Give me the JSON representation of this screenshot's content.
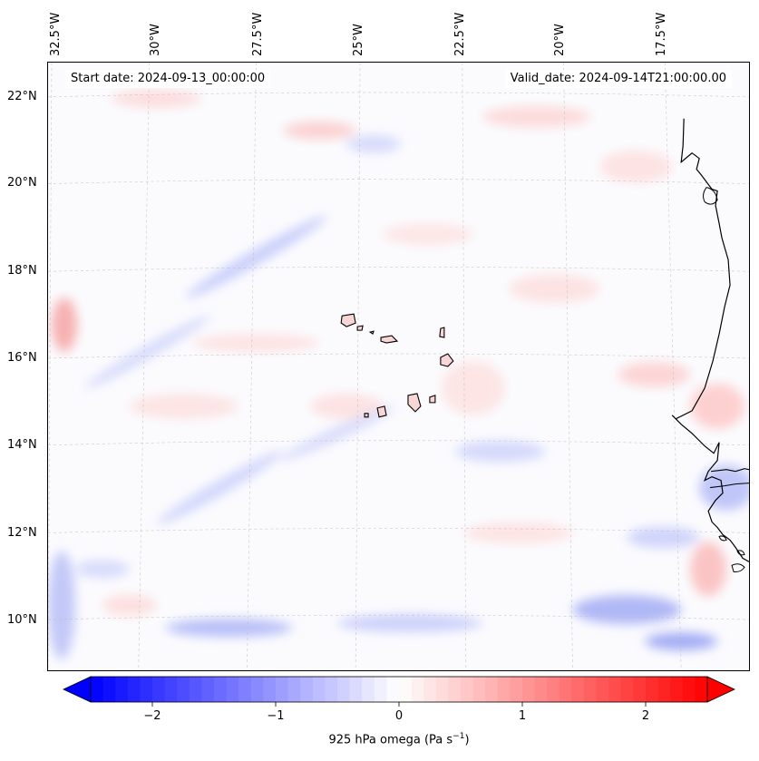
{
  "map": {
    "start_date_label": "Start date: 2024-09-13_00:00:00",
    "valid_date_label": "Valid_date: 2024-09-14T21:00:00.00",
    "lon_labels": [
      "32.5°W",
      "30°W",
      "27.5°W",
      "25°W",
      "22.5°W",
      "20°W",
      "17.5°W"
    ],
    "lat_labels": [
      "22°N",
      "20°N",
      "18°N",
      "16°N",
      "14°N",
      "12°N",
      "10°N"
    ],
    "field_variable": "925 hPa omega",
    "extent": {
      "lon_min": -32.6,
      "lon_max": -16.5,
      "lat_min": 8.8,
      "lat_max": 22.8
    },
    "gridlines": true,
    "coastlines": [
      "West Africa (Mauritania, Senegal, Gambia, Guinea-Bissau)",
      "Cape Verde islands"
    ]
  },
  "colorbar": {
    "label_main": "925 hPa omega (Pa s",
    "label_exp": "−1",
    "label_end": ")",
    "ticks": [
      "−2",
      "−1",
      "0",
      "1",
      "2"
    ],
    "tick_values": [
      -2,
      -1,
      0,
      1,
      2
    ],
    "range": [
      -2.5,
      2.5
    ],
    "colormap": "bwr",
    "extend": "both",
    "colors": {
      "negative": "#0000ff",
      "zero": "#ffffff",
      "positive": "#ff0000"
    }
  }
}
